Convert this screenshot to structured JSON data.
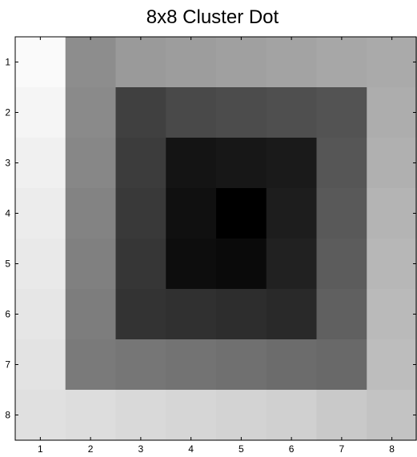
{
  "chart_data": {
    "type": "heatmap",
    "title": "8x8 Cluster Dot",
    "xlabel": "",
    "ylabel": "",
    "x_ticks": [
      "1",
      "2",
      "3",
      "4",
      "5",
      "6",
      "7",
      "8"
    ],
    "y_ticks": [
      "1",
      "2",
      "3",
      "4",
      "5",
      "6",
      "7",
      "8"
    ],
    "xlim": [
      0.5,
      8.5
    ],
    "ylim": [
      0.5,
      8.5
    ],
    "y_axis_direction": "top-to-bottom",
    "colormap": "gray",
    "value_scale": "grayscale intensity 0 (black) to 255 (white)",
    "grid": false,
    "rows": [
      [
        250,
        141,
        154,
        157,
        160,
        163,
        167,
        170
      ],
      [
        245,
        138,
        64,
        73,
        76,
        79,
        83,
        173
      ],
      [
        240,
        135,
        60,
        20,
        23,
        26,
        86,
        176
      ],
      [
        236,
        131,
        57,
        16,
        0,
        29,
        89,
        180
      ],
      [
        233,
        128,
        54,
        13,
        10,
        33,
        92,
        183
      ],
      [
        230,
        125,
        51,
        48,
        45,
        41,
        96,
        186
      ],
      [
        227,
        122,
        118,
        115,
        112,
        108,
        105,
        189
      ],
      [
        224,
        221,
        217,
        214,
        211,
        208,
        201,
        195
      ]
    ]
  }
}
